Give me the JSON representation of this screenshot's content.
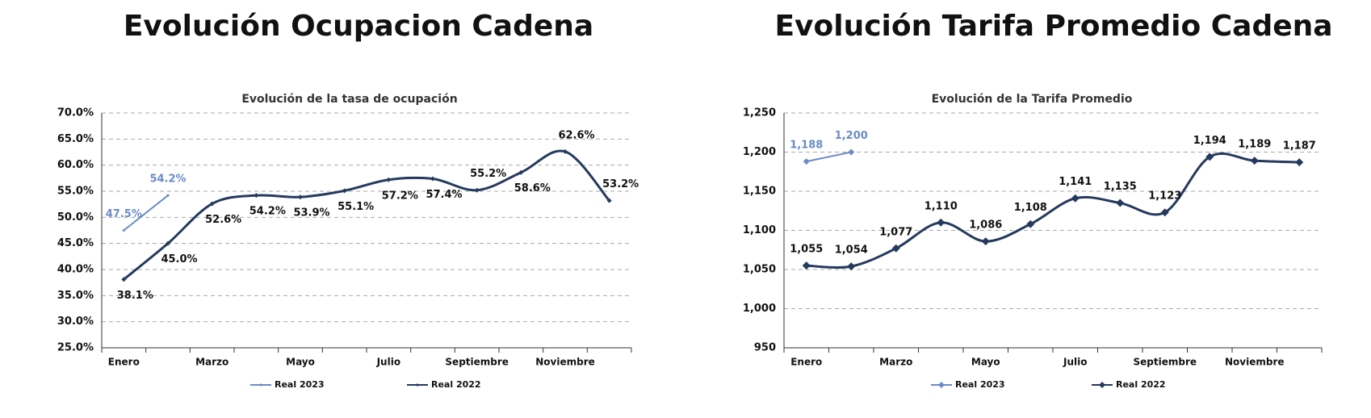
{
  "chart_data": [
    {
      "type": "line",
      "title": "Evolución Ocupacion Cadena",
      "subtitle": "Evolución de la tasa de ocupación",
      "categories": [
        "Enero",
        null,
        "Marzo",
        null,
        "Mayo",
        null,
        "Julio",
        null,
        "Septiembre",
        null,
        "Noviembre",
        null
      ],
      "ylim": [
        25,
        70
      ],
      "yticks": [
        {
          "value": 25,
          "label": "25.0%"
        },
        {
          "value": 30,
          "label": "30.0%"
        },
        {
          "value": 35,
          "label": "35.0%"
        },
        {
          "value": 40,
          "label": "40.0%"
        },
        {
          "value": 45,
          "label": "45.0%"
        },
        {
          "value": 50,
          "label": "50.0%"
        },
        {
          "value": 55,
          "label": "55.0%"
        },
        {
          "value": 60,
          "label": "60.0%"
        },
        {
          "value": 65,
          "label": "65.0%"
        },
        {
          "value": 70,
          "label": "70.0%"
        }
      ],
      "grid": true,
      "series": [
        {
          "name": "Real 2023",
          "color": "#6a8cc7",
          "values": [
            47.5,
            54.2,
            null,
            null,
            null,
            null,
            null,
            null,
            null,
            null,
            null,
            null
          ],
          "value_labels": [
            "47.5%",
            "54.2%",
            null,
            null,
            null,
            null,
            null,
            null,
            null,
            null,
            null,
            null
          ]
        },
        {
          "name": "Real 2022",
          "color": "#243a5e",
          "values": [
            38.1,
            45.0,
            52.6,
            54.2,
            53.9,
            55.1,
            57.2,
            57.4,
            55.2,
            58.6,
            62.6,
            53.2
          ],
          "value_labels": [
            "38.1%",
            "45.0%",
            "52.6%",
            "54.2%",
            "53.9%",
            "55.1%",
            "57.2%",
            "57.4%",
            "55.2%",
            "58.6%",
            "62.6%",
            "53.2%"
          ]
        }
      ]
    },
    {
      "type": "line",
      "title": "Evolución Tarifa Promedio Cadena",
      "subtitle": "Evolución de la Tarifa Promedio",
      "categories": [
        "Enero",
        null,
        "Marzo",
        null,
        "Mayo",
        null,
        "Julio",
        null,
        "Septiembre",
        null,
        "Noviembre",
        null
      ],
      "ylim": [
        950,
        1250
      ],
      "yticks": [
        950,
        {
          "value": 1000,
          "label": "1,000"
        },
        {
          "value": 1050,
          "label": "1,050"
        },
        {
          "value": 1100,
          "label": "1,100"
        },
        {
          "value": 1150,
          "label": "1,150"
        },
        {
          "value": 1200,
          "label": "1,200"
        },
        {
          "value": 1250,
          "label": "1,250"
        }
      ],
      "grid": true,
      "series": [
        {
          "name": "Real 2023",
          "color": "#6a8cc7",
          "values": [
            1188,
            1200,
            null,
            null,
            null,
            null,
            null,
            null,
            null,
            null,
            null,
            null
          ],
          "value_labels": [
            "1,188",
            "1,200",
            null,
            null,
            null,
            null,
            null,
            null,
            null,
            null,
            null,
            null
          ]
        },
        {
          "name": "Real 2022",
          "color": "#243a5e",
          "values": [
            1055,
            1054,
            1077,
            1110,
            1086,
            1108,
            1141,
            1135,
            1123,
            1194,
            1189,
            1187
          ],
          "value_labels": [
            "1,055",
            "1,054",
            "1,077",
            "1,110",
            "1,086",
            "1,108",
            "1,141",
            "1,135",
            "1,123",
            "1,194",
            "1,189",
            "1,187"
          ]
        }
      ]
    }
  ]
}
